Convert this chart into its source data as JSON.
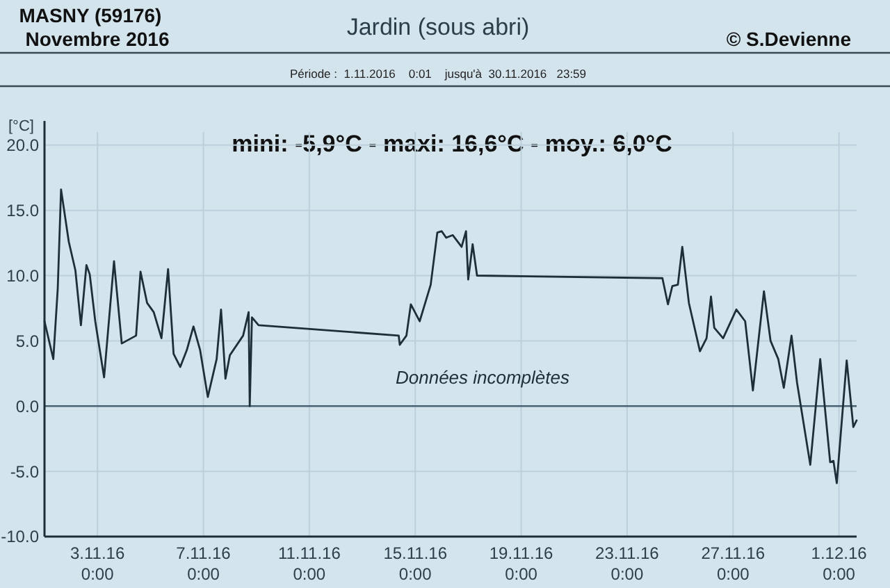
{
  "chart_data": {
    "type": "line",
    "title": "Jardin (sous abri)",
    "subtitle": "Période :  1.11.2016    0:01    jusqu'à  30.11.2016   23:59",
    "ylabel": "[°C]",
    "annotations": [
      "MASNY (59176)",
      "Novembre 2016",
      "© S.Devienne",
      "mini:  -5,9°C - maxi: 16,6°C - moy.: 6,0°C",
      "Données incomplètes"
    ],
    "xlim": [
      "2016-11-01T00:00",
      "2016-12-01T16:00"
    ],
    "xticks": [
      {
        "value": "2016-11-03T00:00",
        "label": "3.11.16\n0:00"
      },
      {
        "value": "2016-11-07T00:00",
        "label": "7.11.16\n0:00"
      },
      {
        "value": "2016-11-11T00:00",
        "label": "11.11.16\n0:00"
      },
      {
        "value": "2016-11-15T00:00",
        "label": "15.11.16\n0:00"
      },
      {
        "value": "2016-11-19T00:00",
        "label": "19.11.16\n0:00"
      },
      {
        "value": "2016-11-23T00:00",
        "label": "23.11.16\n0:00"
      },
      {
        "value": "2016-11-27T00:00",
        "label": "27.11.16\n0:00"
      },
      {
        "value": "2016-12-01T00:00",
        "label": "1.12.16\n0:00"
      }
    ],
    "ylim": [
      -10,
      21
    ],
    "yticks": [
      {
        "value": -10,
        "label": "-10.0"
      },
      {
        "value": -5,
        "label": "-5.0"
      },
      {
        "value": 0,
        "label": "0.0"
      },
      {
        "value": 5,
        "label": "5.0"
      },
      {
        "value": 10,
        "label": "10.0"
      },
      {
        "value": 15,
        "label": "15.0"
      },
      {
        "value": 20,
        "label": "20.0"
      }
    ],
    "grid": true,
    "line_style": "solid",
    "ref_lines": [
      {
        "axis": "y",
        "value": 0,
        "color": "#4a6373"
      }
    ],
    "x": [
      "2016-11-01T00:00",
      "2016-11-01T08:00",
      "2016-11-01T12:00",
      "2016-11-01T15:00",
      "2016-11-01T22:00",
      "2016-11-02T04:00",
      "2016-11-02T09:00",
      "2016-11-02T14:00",
      "2016-11-02T17:00",
      "2016-11-02T22:00",
      "2016-11-03T06:00",
      "2016-11-03T15:00",
      "2016-11-03T22:00",
      "2016-11-04T11:00",
      "2016-11-04T15:00",
      "2016-11-04T21:00",
      "2016-11-05T03:00",
      "2016-11-05T10:00",
      "2016-11-05T16:00",
      "2016-11-05T21:00",
      "2016-11-06T03:00",
      "2016-11-06T09:00",
      "2016-11-06T15:00",
      "2016-11-06T21:00",
      "2016-11-07T04:00",
      "2016-11-07T12:00",
      "2016-11-07T16:00",
      "2016-11-07T20:00",
      "2016-11-08T00:00",
      "2016-11-08T12:00",
      "2016-11-08T17:00",
      "2016-11-08T18:00",
      "2016-11-08T20:00",
      "2016-11-09T02:00",
      "2016-11-14T09:00",
      "2016-11-14T10:00",
      "2016-11-14T16:00",
      "2016-11-14T20:00",
      "2016-11-15T04:00",
      "2016-11-15T14:00",
      "2016-11-15T20:00",
      "2016-11-16T00:00",
      "2016-11-16T04:00",
      "2016-11-16T10:00",
      "2016-11-16T18:00",
      "2016-11-16T22:00",
      "2016-11-17T00:00",
      "2016-11-17T04:00",
      "2016-11-17T08:00",
      "2016-11-24T08:00",
      "2016-11-24T13:00",
      "2016-11-24T17:00",
      "2016-11-24T22:00",
      "2016-11-25T02:00",
      "2016-11-25T08:00",
      "2016-11-25T18:00",
      "2016-11-26T00:00",
      "2016-11-26T04:00",
      "2016-11-26T07:00",
      "2016-11-26T15:00",
      "2016-11-27T03:00",
      "2016-11-27T11:00",
      "2016-11-27T18:00",
      "2016-11-28T04:00",
      "2016-11-28T10:00",
      "2016-11-28T17:00",
      "2016-11-28T22:00",
      "2016-11-29T05:00",
      "2016-11-29T10:00",
      "2016-11-29T22:00",
      "2016-11-30T07:00",
      "2016-11-30T16:00",
      "2016-11-30T19:00",
      "2016-11-30T22:00",
      "2016-12-01T07:00",
      "2016-12-01T13:00",
      "2016-12-01T16:00"
    ],
    "series": [
      {
        "color": "#1e2e38",
        "values": [
          6.5,
          3.6,
          9.0,
          16.6,
          12.6,
          10.4,
          6.2,
          10.8,
          10.1,
          6.5,
          2.2,
          11.1,
          4.8,
          5.4,
          10.3,
          7.9,
          7.2,
          5.2,
          10.5,
          4.0,
          3.0,
          4.3,
          6.1,
          4.3,
          0.7,
          3.6,
          7.4,
          2.1,
          3.9,
          5.4,
          7.2,
          0,
          6.8,
          6.2,
          5.4,
          4.7,
          5.4,
          7.8,
          6.5,
          9.3,
          13.3,
          13.4,
          12.9,
          13.1,
          12.2,
          13.4,
          9.7,
          12.4,
          10.0,
          9.8,
          7.8,
          9.2,
          9.3,
          12.2,
          7.9,
          4.2,
          5.2,
          8.4,
          6.0,
          5.2,
          7.4,
          6.5,
          1.2,
          8.8,
          5.0,
          3.6,
          1.4,
          5.4,
          1.8,
          -4.5,
          3.6,
          -4.3,
          -4.2,
          -5.9,
          3.5,
          -1.6,
          -1.1
        ]
      }
    ]
  }
}
